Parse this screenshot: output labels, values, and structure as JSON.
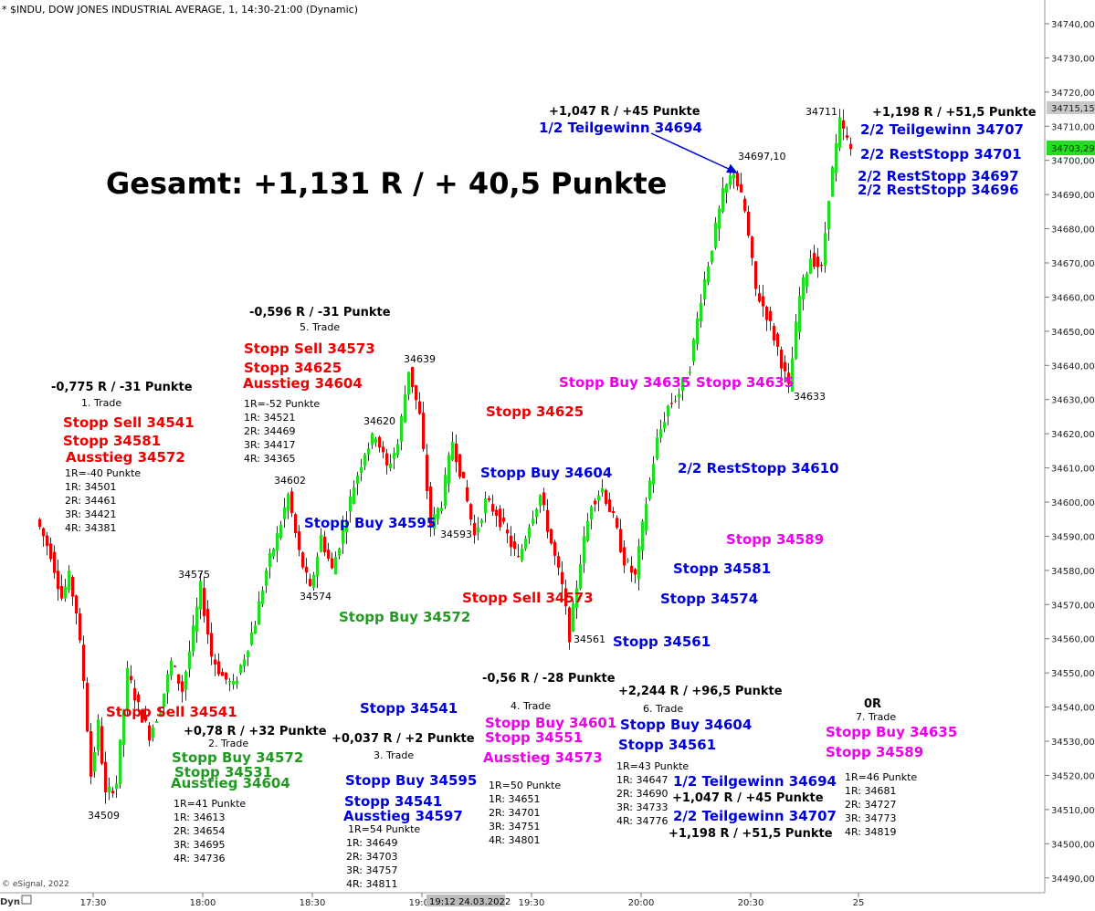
{
  "header": {
    "title": "* $INDU, DOW JONES INDUSTRIAL AVERAGE, 1, 14:30-21:00 (Dynamic)"
  },
  "footer": {
    "copyright": "© eSignal, 2022",
    "mode": "Dyn",
    "cursor_time": "19:12 24.03.2022"
  },
  "price_markers": {
    "last": "34715,15",
    "current": "34703,29"
  },
  "colors": {
    "up": "#22dd22",
    "down": "#ee0000",
    "red": "#ee0000",
    "green": "#229922",
    "blue": "#0000dd",
    "magenta": "#ee00ee",
    "black": "#000000"
  },
  "chart_data": {
    "type": "candlestick",
    "title": "Gesamt: +1,131 R / + 40,5 Punkte",
    "xlabel": "",
    "ylabel": "",
    "ylim": [
      34486,
      34748
    ],
    "y_ticks": [
      "34740,00",
      "34730,00",
      "34720,00",
      "34710,00",
      "34700,00",
      "34690,00",
      "34680,00",
      "34670,00",
      "34660,00",
      "34650,00",
      "34640,00",
      "34630,00",
      "34620,00",
      "34610,00",
      "34600,00",
      "34590,00",
      "34580,00",
      "34570,00",
      "34560,00",
      "34550,00",
      "34540,00",
      "34530,00",
      "34520,00",
      "34510,00",
      "34500,00",
      "34490,00"
    ],
    "x_ticks": [
      "17:30",
      "18:00",
      "18:30",
      "19:00",
      "19:30",
      "20:00",
      "20:30",
      "25"
    ],
    "price_path": [
      [
        "17:15",
        34595
      ],
      [
        "17:19",
        34585
      ],
      [
        "17:22",
        34572
      ],
      [
        "17:24",
        34578
      ],
      [
        "17:26",
        34568
      ],
      [
        "17:28",
        34548
      ],
      [
        "17:30",
        34520
      ],
      [
        "17:32",
        34535
      ],
      [
        "17:34",
        34514
      ],
      [
        "17:37",
        34518
      ],
      [
        "17:40",
        34550
      ],
      [
        "17:43",
        34540
      ],
      [
        "17:46",
        34532
      ],
      [
        "17:49",
        34540
      ],
      [
        "17:52",
        34553
      ],
      [
        "17:55",
        34545
      ],
      [
        "17:58",
        34562
      ],
      [
        "18:00",
        34575
      ],
      [
        "18:03",
        34555
      ],
      [
        "18:06",
        34549
      ],
      [
        "18:09",
        34546
      ],
      [
        "18:12",
        34555
      ],
      [
        "18:15",
        34565
      ],
      [
        "18:18",
        34580
      ],
      [
        "18:21",
        34590
      ],
      [
        "18:24",
        34602
      ],
      [
        "18:27",
        34585
      ],
      [
        "18:30",
        34574
      ],
      [
        "18:33",
        34590
      ],
      [
        "18:36",
        34580
      ],
      [
        "18:39",
        34592
      ],
      [
        "18:42",
        34605
      ],
      [
        "18:45",
        34615
      ],
      [
        "18:48",
        34620
      ],
      [
        "18:51",
        34610
      ],
      [
        "18:54",
        34617
      ],
      [
        "18:57",
        34639
      ],
      [
        "19:00",
        34625
      ],
      [
        "19:03",
        34593
      ],
      [
        "19:06",
        34600
      ],
      [
        "19:09",
        34618
      ],
      [
        "19:12",
        34605
      ],
      [
        "19:15",
        34590
      ],
      [
        "19:18",
        34600
      ],
      [
        "19:21",
        34597
      ],
      [
        "19:24",
        34590
      ],
      [
        "19:27",
        34583
      ],
      [
        "19:30",
        34594
      ],
      [
        "19:33",
        34602
      ],
      [
        "19:36",
        34588
      ],
      [
        "19:39",
        34575
      ],
      [
        "19:41",
        34561
      ],
      [
        "19:44",
        34583
      ],
      [
        "19:47",
        34600
      ],
      [
        "19:50",
        34604
      ],
      [
        "19:53",
        34595
      ],
      [
        "19:56",
        34583
      ],
      [
        "19:59",
        34578
      ],
      [
        "20:02",
        34600
      ],
      [
        "20:05",
        34618
      ],
      [
        "20:08",
        34628
      ],
      [
        "20:11",
        34632
      ],
      [
        "20:14",
        34640
      ],
      [
        "20:17",
        34660
      ],
      [
        "20:20",
        34675
      ],
      [
        "20:23",
        34690
      ],
      [
        "20:26",
        34697
      ],
      [
        "20:29",
        34685
      ],
      [
        "20:32",
        34662
      ],
      [
        "20:35",
        34655
      ],
      [
        "20:38",
        34645
      ],
      [
        "20:41",
        34633
      ],
      [
        "20:44",
        34660
      ],
      [
        "20:47",
        34672
      ],
      [
        "20:50",
        34668
      ],
      [
        "20:52",
        34690
      ],
      [
        "20:55",
        34711
      ],
      [
        "20:58",
        34703
      ]
    ],
    "price_labels": [
      "34509",
      "34575",
      "34574",
      "34602",
      "34639",
      "34620",
      "34593",
      "34561",
      "34697,10",
      "34711",
      "34633"
    ],
    "summary": "Gesamt: +1,131 R / + 40,5 Punkte",
    "annotations": [
      {
        "text": "-0,775 R / -31 Punkte",
        "color": "black"
      },
      {
        "text": "1. Trade",
        "color": "black",
        "small": true
      },
      {
        "text": "Stopp Sell 34541",
        "color": "red"
      },
      {
        "text": "Stopp 34581",
        "color": "red"
      },
      {
        "text": "Ausstieg 34572",
        "color": "red"
      },
      {
        "text": "1R=-40 Punkte",
        "color": "black",
        "small": true
      },
      {
        "text": "1R: 34501",
        "color": "black",
        "small": true
      },
      {
        "text": "2R: 34461",
        "color": "black",
        "small": true
      },
      {
        "text": "3R: 34421",
        "color": "black",
        "small": true
      },
      {
        "text": "4R: 34381",
        "color": "black",
        "small": true
      },
      {
        "text": "-0,596 R / -31 Punkte",
        "color": "black"
      },
      {
        "text": "5. Trade",
        "color": "black",
        "small": true
      },
      {
        "text": "Stopp Sell 34573",
        "color": "red"
      },
      {
        "text": "Stopp 34625",
        "color": "red"
      },
      {
        "text": "Ausstieg 34604",
        "color": "red"
      },
      {
        "text": "1R=-52 Punkte",
        "color": "black",
        "small": true
      },
      {
        "text": "1R: 34521",
        "color": "black",
        "small": true
      },
      {
        "text": "2R: 34469",
        "color": "black",
        "small": true
      },
      {
        "text": "3R: 34417",
        "color": "black",
        "small": true
      },
      {
        "text": "4R: 34365",
        "color": "black",
        "small": true
      },
      {
        "text": "+1,047 R / +45 Punkte",
        "color": "black"
      },
      {
        "text": "1/2 Teilgewinn 34694",
        "color": "blue"
      },
      {
        "text": "+1,198 R / +51,5 Punkte",
        "color": "black"
      },
      {
        "text": "2/2 Teilgewinn 34707",
        "color": "blue"
      },
      {
        "text": "2/2 RestStopp 34701",
        "color": "blue"
      },
      {
        "text": "2/2 RestStopp 34697",
        "color": "blue"
      },
      {
        "text": "2/2 RestStopp 34696",
        "color": "blue"
      },
      {
        "text": "Stopp 34625",
        "color": "red"
      },
      {
        "text": "Stopp Buy 34635",
        "color": "magenta"
      },
      {
        "text": "Stopp 34635",
        "color": "magenta"
      },
      {
        "text": "Stopp Buy 34604",
        "color": "blue"
      },
      {
        "text": "2/2 RestStopp 34610",
        "color": "blue"
      },
      {
        "text": "Stopp Buy 34595",
        "color": "blue"
      },
      {
        "text": "Stopp 34589",
        "color": "magenta"
      },
      {
        "text": "Stopp 34581",
        "color": "blue"
      },
      {
        "text": "Stopp Sell 34573",
        "color": "red"
      },
      {
        "text": "Stopp 34574",
        "color": "blue"
      },
      {
        "text": "Stopp Buy 34572",
        "color": "green"
      },
      {
        "text": "Stopp 34561",
        "color": "blue"
      },
      {
        "text": "-0,56 R / -28 Punkte",
        "color": "black"
      },
      {
        "text": "+2,244 R / +96,5 Punkte",
        "color": "black"
      },
      {
        "text": "Stopp Sell 34541",
        "color": "red"
      },
      {
        "text": "Stopp 34541",
        "color": "blue"
      },
      {
        "text": "4. Trade",
        "color": "black",
        "small": true
      },
      {
        "text": "Stopp Buy 34601",
        "color": "magenta"
      },
      {
        "text": "Stopp 34551",
        "color": "magenta"
      },
      {
        "text": "Ausstieg 34573",
        "color": "magenta"
      },
      {
        "text": "1R=50 Punkte",
        "color": "black",
        "small": true
      },
      {
        "text": "1R: 34651",
        "color": "black",
        "small": true
      },
      {
        "text": "2R: 34701",
        "color": "black",
        "small": true
      },
      {
        "text": "3R: 34751",
        "color": "black",
        "small": true
      },
      {
        "text": "4R: 34801",
        "color": "black",
        "small": true
      },
      {
        "text": "6. Trade",
        "color": "black",
        "small": true
      },
      {
        "text": "Stopp Buy 34604",
        "color": "blue"
      },
      {
        "text": "Stopp 34561",
        "color": "blue"
      },
      {
        "text": "1R=43 Punkte",
        "color": "black",
        "small": true
      },
      {
        "text": "1R: 34647",
        "color": "black",
        "small": true
      },
      {
        "text": "2R: 34690",
        "color": "black",
        "small": true
      },
      {
        "text": "3R: 34733",
        "color": "black",
        "small": true
      },
      {
        "text": "4R: 34776",
        "color": "black",
        "small": true
      },
      {
        "text": "1/2 Teilgewinn 34694",
        "color": "blue"
      },
      {
        "text": "+1,047 R / +45 Punkte",
        "color": "black"
      },
      {
        "text": "2/2 Teilgewinn 34707",
        "color": "blue"
      },
      {
        "text": "+1,198 R / +51,5 Punkte",
        "color": "black"
      },
      {
        "text": "0R",
        "color": "black"
      },
      {
        "text": "7. Trade",
        "color": "black",
        "small": true
      },
      {
        "text": "Stopp Buy 34635",
        "color": "magenta"
      },
      {
        "text": "Stopp 34589",
        "color": "magenta"
      },
      {
        "text": "1R=46 Punkte",
        "color": "black",
        "small": true
      },
      {
        "text": "1R: 34681",
        "color": "black",
        "small": true
      },
      {
        "text": "2R: 34727",
        "color": "black",
        "small": true
      },
      {
        "text": "3R: 34773",
        "color": "black",
        "small": true
      },
      {
        "text": "4R: 34819",
        "color": "black",
        "small": true
      },
      {
        "text": "+0,78 R / +32 Punkte",
        "color": "black"
      },
      {
        "text": "2. Trade",
        "color": "black",
        "small": true
      },
      {
        "text": "Stopp Buy 34572",
        "color": "green"
      },
      {
        "text": "Stopp 34531",
        "color": "green"
      },
      {
        "text": "Ausstieg 34604",
        "color": "green"
      },
      {
        "text": "1R=41 Punkte",
        "color": "black",
        "small": true
      },
      {
        "text": "1R: 34613",
        "color": "black",
        "small": true
      },
      {
        "text": "2R: 34654",
        "color": "black",
        "small": true
      },
      {
        "text": "3R: 34695",
        "color": "black",
        "small": true
      },
      {
        "text": "4R: 34736",
        "color": "black",
        "small": true
      },
      {
        "text": "+0,037 R / +2 Punkte",
        "color": "black"
      },
      {
        "text": "3. Trade",
        "color": "black",
        "small": true
      },
      {
        "text": "Stopp Buy 34595",
        "color": "blue"
      },
      {
        "text": "Stopp 34541",
        "color": "blue"
      },
      {
        "text": "Ausstieg 34597",
        "color": "blue"
      },
      {
        "text": "1R=54 Punkte",
        "color": "black",
        "small": true
      },
      {
        "text": "1R: 34649",
        "color": "black",
        "small": true
      },
      {
        "text": "2R: 34703",
        "color": "black",
        "small": true
      },
      {
        "text": "3R: 34757",
        "color": "black",
        "small": true
      },
      {
        "text": "4R: 34811",
        "color": "black",
        "small": true
      }
    ]
  }
}
